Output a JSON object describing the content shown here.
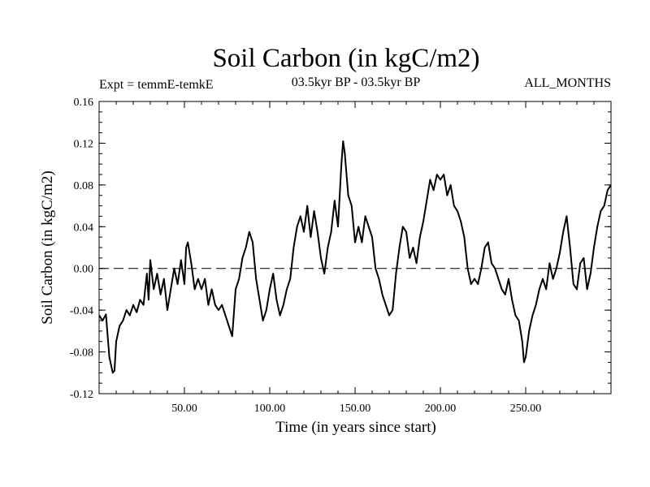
{
  "chart_data": {
    "type": "line",
    "title": "Soil Carbon (in kgC/m2)",
    "subtitle": "03.5kyr BP - 03.5kyr BP",
    "expt_label": "Expt = temmE-temkE",
    "months_label": "ALL_MONTHS",
    "xlabel": "Time (in years since start)",
    "ylabel": "Soil Carbon (in kgC/m2)",
    "xlim": [
      0,
      300
    ],
    "ylim": [
      -0.12,
      0.16
    ],
    "x_ticks": [
      {
        "value": 50,
        "label": "50.00"
      },
      {
        "value": 100,
        "label": "100.00"
      },
      {
        "value": 150,
        "label": "150.00"
      },
      {
        "value": 200,
        "label": "200.00"
      },
      {
        "value": 250,
        "label": "250.00"
      }
    ],
    "y_ticks": [
      {
        "value": 0.16,
        "label": "0.16"
      },
      {
        "value": 0.12,
        "label": "0.12"
      },
      {
        "value": 0.08,
        "label": "0.08"
      },
      {
        "value": 0.04,
        "label": "0.04"
      },
      {
        "value": 0.0,
        "label": "0.00"
      },
      {
        "value": -0.04,
        "label": "-0.04"
      },
      {
        "value": -0.08,
        "label": "-0.08"
      },
      {
        "value": -0.12,
        "label": "-0.12"
      }
    ],
    "reference_line": {
      "y": 0.0,
      "style": "dashed"
    },
    "grid": false,
    "series": [
      {
        "name": "Soil Carbon",
        "x": [
          0,
          2,
          4,
          6,
          8,
          9,
          10,
          12,
          14,
          16,
          18,
          20,
          22,
          24,
          26,
          28,
          29,
          30,
          32,
          34,
          36,
          38,
          40,
          42,
          44,
          46,
          48,
          50,
          51,
          52,
          54,
          56,
          58,
          60,
          62,
          64,
          66,
          68,
          70,
          72,
          74,
          76,
          78,
          80,
          82,
          84,
          86,
          88,
          90,
          92,
          94,
          96,
          98,
          100,
          102,
          104,
          106,
          108,
          110,
          112,
          114,
          116,
          118,
          120,
          122,
          124,
          126,
          128,
          130,
          132,
          134,
          136,
          138,
          140,
          142,
          143,
          144,
          146,
          148,
          150,
          152,
          154,
          156,
          158,
          160,
          162,
          164,
          166,
          168,
          170,
          172,
          174,
          176,
          178,
          180,
          182,
          184,
          186,
          188,
          190,
          192,
          194,
          196,
          198,
          200,
          202,
          204,
          206,
          208,
          210,
          212,
          214,
          216,
          218,
          220,
          222,
          224,
          226,
          228,
          230,
          232,
          234,
          236,
          238,
          240,
          242,
          244,
          246,
          248,
          249,
          250,
          252,
          254,
          256,
          258,
          260,
          262,
          264,
          266,
          268,
          270,
          272,
          274,
          276,
          278,
          280,
          282,
          284,
          286,
          288,
          290,
          292,
          294,
          296,
          298,
          300
        ],
        "values": [
          -0.045,
          -0.05,
          -0.044,
          -0.085,
          -0.1,
          -0.098,
          -0.07,
          -0.055,
          -0.05,
          -0.04,
          -0.045,
          -0.035,
          -0.042,
          -0.03,
          -0.035,
          -0.005,
          -0.03,
          0.008,
          -0.02,
          -0.005,
          -0.025,
          -0.01,
          -0.04,
          -0.02,
          0.0,
          -0.015,
          0.008,
          -0.015,
          0.02,
          0.025,
          0.005,
          -0.02,
          -0.01,
          -0.02,
          -0.01,
          -0.035,
          -0.02,
          -0.035,
          -0.04,
          -0.035,
          -0.045,
          -0.055,
          -0.065,
          -0.02,
          -0.01,
          0.01,
          0.02,
          0.035,
          0.025,
          -0.01,
          -0.03,
          -0.05,
          -0.04,
          -0.02,
          -0.005,
          -0.03,
          -0.045,
          -0.035,
          -0.02,
          -0.01,
          0.02,
          0.04,
          0.05,
          0.035,
          0.06,
          0.03,
          0.055,
          0.035,
          0.01,
          -0.005,
          0.02,
          0.035,
          0.065,
          0.04,
          0.1,
          0.122,
          0.11,
          0.07,
          0.06,
          0.025,
          0.04,
          0.025,
          0.05,
          0.04,
          0.03,
          0.0,
          -0.01,
          -0.025,
          -0.035,
          -0.045,
          -0.04,
          -0.005,
          0.02,
          0.04,
          0.035,
          0.01,
          0.02,
          0.005,
          0.03,
          0.045,
          0.065,
          0.085,
          0.075,
          0.09,
          0.085,
          0.09,
          0.07,
          0.08,
          0.06,
          0.055,
          0.045,
          0.03,
          0.0,
          -0.015,
          -0.01,
          -0.015,
          0.0,
          0.02,
          0.025,
          0.005,
          0.0,
          -0.01,
          -0.02,
          -0.025,
          -0.01,
          -0.03,
          -0.045,
          -0.05,
          -0.07,
          -0.09,
          -0.085,
          -0.06,
          -0.045,
          -0.035,
          -0.02,
          -0.01,
          -0.02,
          0.005,
          -0.01,
          0.0,
          0.015,
          0.035,
          0.05,
          0.02,
          -0.015,
          -0.02,
          0.005,
          0.01,
          -0.02,
          -0.005,
          0.02,
          0.04,
          0.055,
          0.06,
          0.075,
          0.08
        ]
      }
    ]
  }
}
